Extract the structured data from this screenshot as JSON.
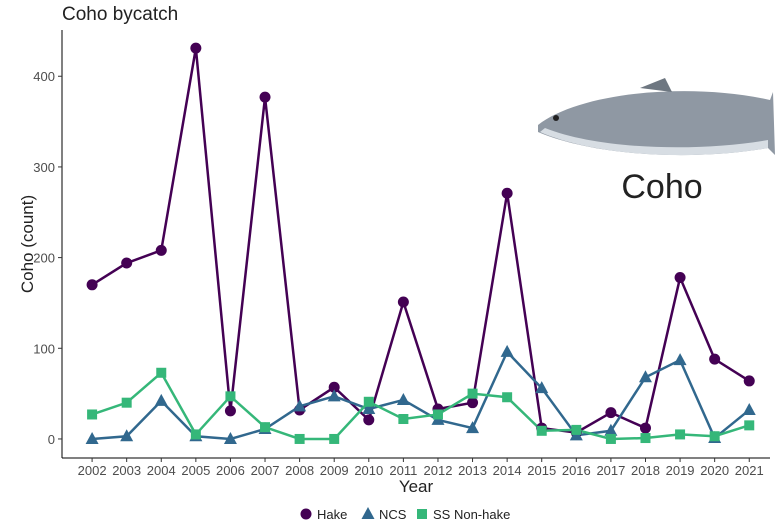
{
  "chart_data": {
    "type": "line",
    "title": "Coho bycatch",
    "x_label": "Year",
    "y_label": "Coho (count)",
    "annotation": "Coho",
    "x": [
      2002,
      2003,
      2004,
      2005,
      2006,
      2007,
      2008,
      2009,
      2010,
      2011,
      2012,
      2013,
      2014,
      2015,
      2016,
      2017,
      2018,
      2019,
      2020,
      2021
    ],
    "xlim": [
      2001.13,
      2021.6
    ],
    "xticks": [
      2002,
      2003,
      2004,
      2005,
      2006,
      2007,
      2008,
      2009,
      2010,
      2011,
      2012,
      2013,
      2014,
      2015,
      2016,
      2017,
      2018,
      2019,
      2020,
      2021
    ],
    "ylim": [
      -21,
      451
    ],
    "yticks": [
      0,
      100,
      200,
      300,
      400
    ],
    "grid": false,
    "legend": "bottom",
    "series": [
      {
        "name": "Hake",
        "color": "#440154",
        "marker": "circle",
        "values": [
          170,
          194,
          208,
          431,
          31,
          377,
          32,
          57,
          21,
          151,
          33,
          40,
          271,
          12,
          7,
          29,
          12,
          178,
          88,
          64
        ]
      },
      {
        "name": "NCS",
        "color": "#31688e",
        "marker": "triangle",
        "values": [
          0,
          3,
          42,
          3,
          0,
          11,
          36,
          47,
          33,
          43,
          21,
          12,
          96,
          56,
          4,
          9,
          68,
          87,
          1,
          32
        ]
      },
      {
        "name": "SS Non-hake",
        "color": "#35b779",
        "marker": "square",
        "values": [
          27,
          40,
          73,
          5,
          47,
          13,
          0,
          0,
          41,
          22,
          27,
          50,
          46,
          9,
          10,
          0,
          1,
          5,
          3,
          15
        ]
      }
    ]
  }
}
